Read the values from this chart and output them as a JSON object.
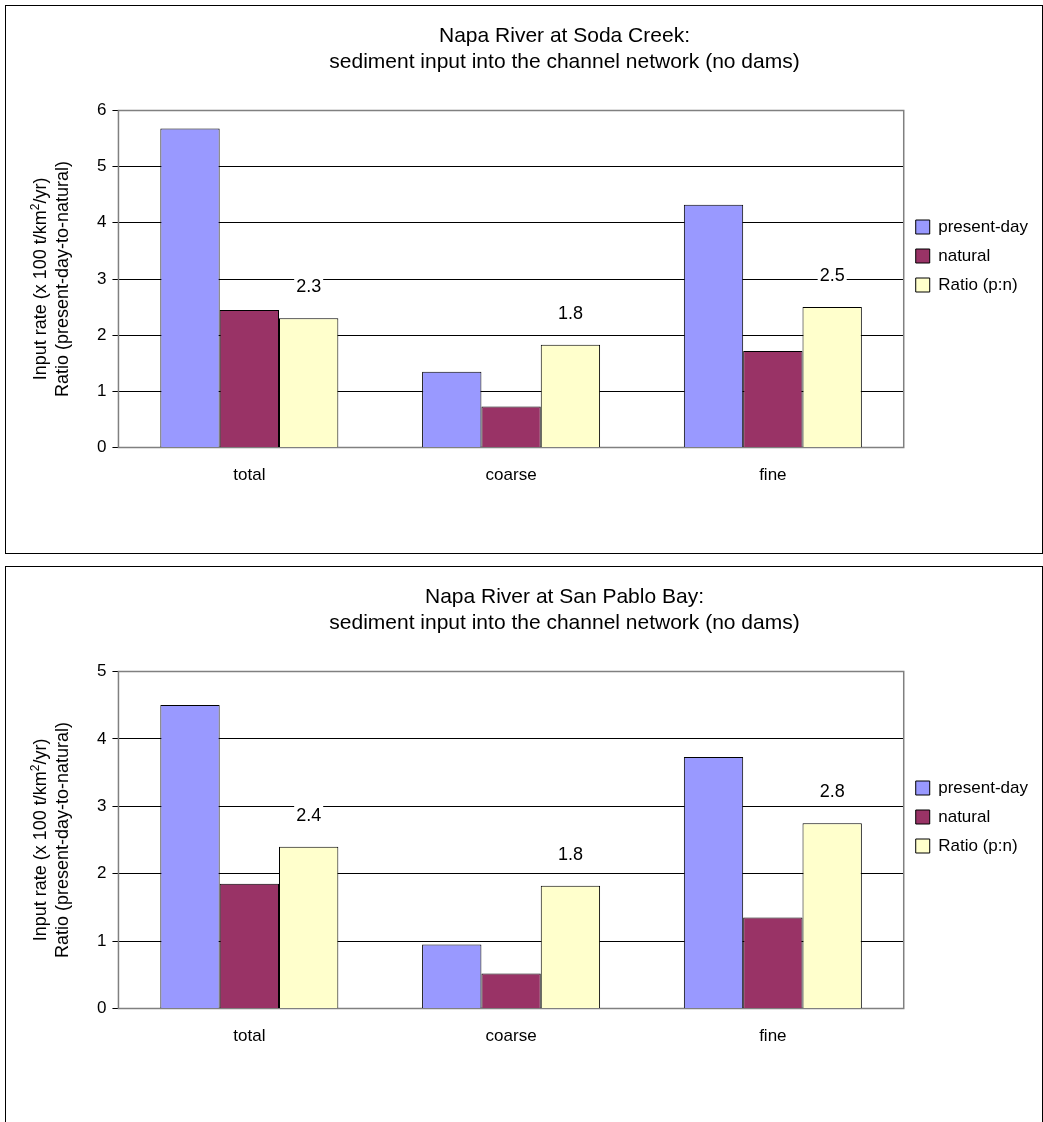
{
  "chart_data": [
    {
      "type": "bar",
      "title": "Napa River at Soda Creek:\nsediment input into the channel network (no dams)",
      "ylabel": "Input rate (x 100 t/km$^{2}$/yr)\nRatio (present-day-to-natural)",
      "categories": [
        "total",
        "coarse",
        "fine"
      ],
      "series": [
        {
          "name": "present-day",
          "color": "#9999ff",
          "values": [
            5.68,
            1.35,
            4.32
          ]
        },
        {
          "name": "natural",
          "color": "#993366",
          "values": [
            2.45,
            0.73,
            1.72
          ]
        },
        {
          "name": "Ratio (p:n)",
          "color": "#ffffcc",
          "values": [
            2.3,
            1.83,
            2.5
          ],
          "value_labels": [
            "2.3",
            "1.8",
            "2.5"
          ]
        }
      ],
      "ylim": [
        0,
        6
      ],
      "yticks": [
        0,
        1,
        2,
        3,
        4,
        5,
        6
      ],
      "grid": "y",
      "legend": "right"
    },
    {
      "type": "bar",
      "title": "Napa River at San Pablo Bay:\nsediment input into the channel network (no dams)",
      "ylabel": "Input rate (x 100 t/km$^{2}$/yr)\nRatio (present-day-to-natural)",
      "categories": [
        "total",
        "coarse",
        "fine"
      ],
      "series": [
        {
          "name": "present-day",
          "color": "#9999ff",
          "values": [
            4.5,
            0.95,
            3.73
          ]
        },
        {
          "name": "natural",
          "color": "#993366",
          "values": [
            1.85,
            0.52,
            1.35
          ]
        },
        {
          "name": "Ratio (p:n)",
          "color": "#ffffcc",
          "values": [
            2.4,
            1.82,
            2.75
          ],
          "value_labels": [
            "2.4",
            "1.8",
            "2.8"
          ]
        }
      ],
      "ylim": [
        0,
        5
      ],
      "yticks": [
        0,
        1,
        2,
        3,
        4,
        5
      ],
      "grid": "y",
      "legend": "right"
    }
  ]
}
